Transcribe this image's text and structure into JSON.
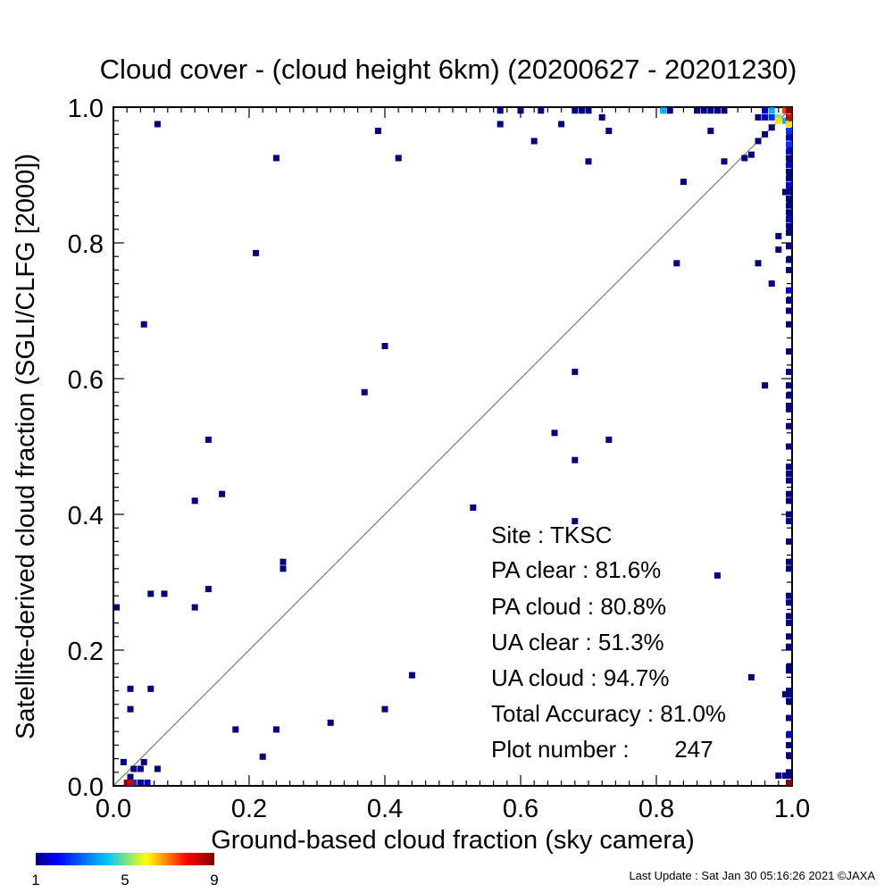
{
  "chart_data": {
    "type": "scatter",
    "title": "Cloud cover - (cloud height 6km)  (20200627 - 20201230)",
    "xlabel": "Ground-based cloud fraction (sky camera)",
    "ylabel": "Satellite-derived cloud fraction (SGLI/CLFG [2000])",
    "xlim": [
      0,
      1
    ],
    "ylim": [
      0,
      1
    ],
    "xticks": [
      "0.0",
      "0.2",
      "0.4",
      "0.6",
      "0.8",
      "1.0"
    ],
    "yticks": [
      "0.0",
      "0.2",
      "0.4",
      "0.6",
      "0.8",
      "1.0"
    ],
    "grid": false,
    "diagonal_reference_line": true,
    "colorbar": {
      "ticks": [
        "1",
        "5",
        "9"
      ],
      "min": 1,
      "max": 9,
      "colors": [
        "#000080",
        "#0000ff",
        "#00c8ff",
        "#ffff00",
        "#ff0000",
        "#800000"
      ]
    },
    "stats": [
      {
        "label": "Site : TKSC"
      },
      {
        "label": "PA clear :  81.6%"
      },
      {
        "label": "PA cloud :  80.8%"
      },
      {
        "label": "UA clear :  51.3%"
      },
      {
        "label": "UA cloud :  94.7%"
      },
      {
        "label": "Total Accuracy :  81.0%"
      },
      {
        "label": "Plot number :       247"
      }
    ],
    "points": [
      [
        0.065,
        0.975,
        1
      ],
      [
        0.24,
        0.925,
        1
      ],
      [
        0.39,
        0.965,
        1
      ],
      [
        0.42,
        0.925,
        1
      ],
      [
        0.21,
        0.785,
        1
      ],
      [
        0.045,
        0.68,
        1
      ],
      [
        0.4,
        0.648,
        1
      ],
      [
        0.37,
        0.58,
        1
      ],
      [
        0.14,
        0.51,
        1
      ],
      [
        0.16,
        0.43,
        1
      ],
      [
        0.12,
        0.42,
        1
      ],
      [
        0.25,
        0.33,
        1
      ],
      [
        0.25,
        0.32,
        1
      ],
      [
        0.14,
        0.29,
        1
      ],
      [
        0.055,
        0.283,
        1
      ],
      [
        0.075,
        0.283,
        1
      ],
      [
        0.12,
        0.263,
        1
      ],
      [
        0.0,
        0.263,
        1
      ],
      [
        0.025,
        0.143,
        1
      ],
      [
        0.055,
        0.143,
        1
      ],
      [
        0.025,
        0.113,
        1
      ],
      [
        0.44,
        0.163,
        1
      ],
      [
        0.4,
        0.113,
        1
      ],
      [
        0.32,
        0.093,
        1
      ],
      [
        0.18,
        0.083,
        1
      ],
      [
        0.24,
        0.083,
        1
      ],
      [
        0.22,
        0.043,
        1
      ],
      [
        0.015,
        0.035,
        1
      ],
      [
        0.045,
        0.035,
        1
      ],
      [
        0.04,
        0.025,
        1
      ],
      [
        0.03,
        0.025,
        1
      ],
      [
        0.065,
        0.025,
        1
      ],
      [
        0.025,
        0.013,
        1
      ],
      [
        0.03,
        0.0,
        3
      ],
      [
        0.04,
        0.0,
        1
      ],
      [
        0.05,
        0.0,
        2
      ],
      [
        0.02,
        0.0,
        9
      ],
      [
        0.025,
        0.003,
        8
      ],
      [
        0.53,
        0.41,
        1
      ],
      [
        0.68,
        0.39,
        1
      ],
      [
        0.65,
        0.52,
        1
      ],
      [
        0.68,
        0.48,
        1
      ],
      [
        0.73,
        0.51,
        1
      ],
      [
        0.68,
        0.61,
        1
      ],
      [
        0.89,
        0.31,
        1
      ],
      [
        0.94,
        0.16,
        1
      ],
      [
        0.96,
        0.59,
        1
      ],
      [
        0.97,
        0.74,
        1
      ],
      [
        0.95,
        0.77,
        1
      ],
      [
        0.83,
        0.77,
        1
      ],
      [
        0.98,
        0.79,
        1
      ],
      [
        0.98,
        0.81,
        1
      ],
      [
        0.84,
        0.89,
        1
      ],
      [
        0.9,
        0.92,
        1
      ],
      [
        0.7,
        0.92,
        1
      ],
      [
        0.62,
        0.95,
        1
      ],
      [
        0.57,
        0.975,
        1
      ],
      [
        0.57,
        0.995,
        1
      ],
      [
        0.6,
        0.995,
        1
      ],
      [
        0.63,
        0.995,
        1
      ],
      [
        0.66,
        0.975,
        1
      ],
      [
        0.68,
        0.995,
        1
      ],
      [
        0.69,
        0.995,
        1
      ],
      [
        0.7,
        0.995,
        1
      ],
      [
        0.72,
        0.985,
        1
      ],
      [
        0.73,
        0.965,
        1
      ],
      [
        0.81,
        0.995,
        4
      ],
      [
        0.82,
        0.995,
        1
      ],
      [
        0.86,
        0.995,
        1
      ],
      [
        0.87,
        0.995,
        1
      ],
      [
        0.88,
        0.995,
        1
      ],
      [
        0.89,
        0.995,
        1
      ],
      [
        0.9,
        0.995,
        1
      ],
      [
        0.88,
        0.965,
        1
      ],
      [
        0.93,
        0.925,
        1
      ],
      [
        0.94,
        0.93,
        1
      ],
      [
        0.95,
        0.95,
        1
      ],
      [
        0.96,
        0.96,
        1
      ],
      [
        0.97,
        0.97,
        1
      ],
      [
        0.95,
        0.985,
        1
      ],
      [
        0.96,
        0.985,
        2
      ],
      [
        0.97,
        0.985,
        3
      ],
      [
        0.98,
        0.985,
        5
      ],
      [
        0.99,
        0.995,
        7
      ],
      [
        0.97,
        0.995,
        4
      ],
      [
        0.96,
        0.995,
        2
      ],
      [
        0.98,
        0.98,
        6
      ],
      [
        0.99,
        0.98,
        4
      ],
      [
        1.0,
        0.995,
        9
      ],
      [
        1.0,
        0.985,
        8
      ],
      [
        1.0,
        0.975,
        6
      ],
      [
        1.0,
        0.965,
        3
      ],
      [
        1.0,
        0.955,
        2
      ],
      [
        1.0,
        0.945,
        3
      ],
      [
        1.0,
        0.935,
        2
      ],
      [
        1.0,
        0.925,
        1
      ],
      [
        1.0,
        0.915,
        2
      ],
      [
        1.0,
        0.905,
        1
      ],
      [
        1.0,
        0.895,
        1
      ],
      [
        1.0,
        0.885,
        2
      ],
      [
        1.0,
        0.875,
        1
      ],
      [
        1.0,
        0.865,
        1
      ],
      [
        1.0,
        0.855,
        1
      ],
      [
        1.0,
        0.845,
        1
      ],
      [
        1.0,
        0.835,
        2
      ],
      [
        1.0,
        0.825,
        1
      ],
      [
        1.0,
        0.815,
        1
      ],
      [
        0.99,
        0.875,
        1
      ],
      [
        1.0,
        0.795,
        1
      ],
      [
        1.0,
        0.775,
        1
      ],
      [
        1.0,
        0.76,
        1
      ],
      [
        1.0,
        0.73,
        2
      ],
      [
        1.0,
        0.715,
        1
      ],
      [
        1.0,
        0.7,
        1
      ],
      [
        1.0,
        0.68,
        1
      ],
      [
        1.0,
        0.64,
        1
      ],
      [
        1.0,
        0.61,
        1
      ],
      [
        1.0,
        0.59,
        1
      ],
      [
        1.0,
        0.575,
        1
      ],
      [
        1.0,
        0.56,
        1
      ],
      [
        1.0,
        0.555,
        1
      ],
      [
        1.0,
        0.53,
        1
      ],
      [
        1.0,
        0.5,
        1
      ],
      [
        1.0,
        0.47,
        1
      ],
      [
        1.0,
        0.46,
        1
      ],
      [
        1.0,
        0.45,
        1
      ],
      [
        1.0,
        0.43,
        1
      ],
      [
        1.0,
        0.42,
        1
      ],
      [
        1.0,
        0.4,
        1
      ],
      [
        1.0,
        0.39,
        1
      ],
      [
        1.0,
        0.36,
        1
      ],
      [
        1.0,
        0.33,
        1
      ],
      [
        1.0,
        0.32,
        1
      ],
      [
        1.0,
        0.28,
        1
      ],
      [
        1.0,
        0.27,
        1
      ],
      [
        1.0,
        0.25,
        1
      ],
      [
        1.0,
        0.24,
        1
      ],
      [
        1.0,
        0.22,
        1
      ],
      [
        1.0,
        0.205,
        1
      ],
      [
        1.0,
        0.175,
        1
      ],
      [
        1.0,
        0.17,
        1
      ],
      [
        1.0,
        0.14,
        1
      ],
      [
        1.0,
        0.135,
        1
      ],
      [
        0.99,
        0.135,
        1
      ],
      [
        1.0,
        0.125,
        1
      ],
      [
        1.0,
        0.1,
        1
      ],
      [
        1.0,
        0.075,
        2
      ],
      [
        1.0,
        0.06,
        1
      ],
      [
        1.0,
        0.045,
        1
      ],
      [
        1.0,
        0.02,
        1
      ],
      [
        0.99,
        0.015,
        1
      ],
      [
        1.0,
        0.015,
        1
      ],
      [
        1.0,
        0.0,
        9
      ],
      [
        0.98,
        0.015,
        1
      ]
    ]
  },
  "footer": {
    "last_update": "Last Update : Sat Jan 30 05:16:26 2021  ©JAXA"
  }
}
